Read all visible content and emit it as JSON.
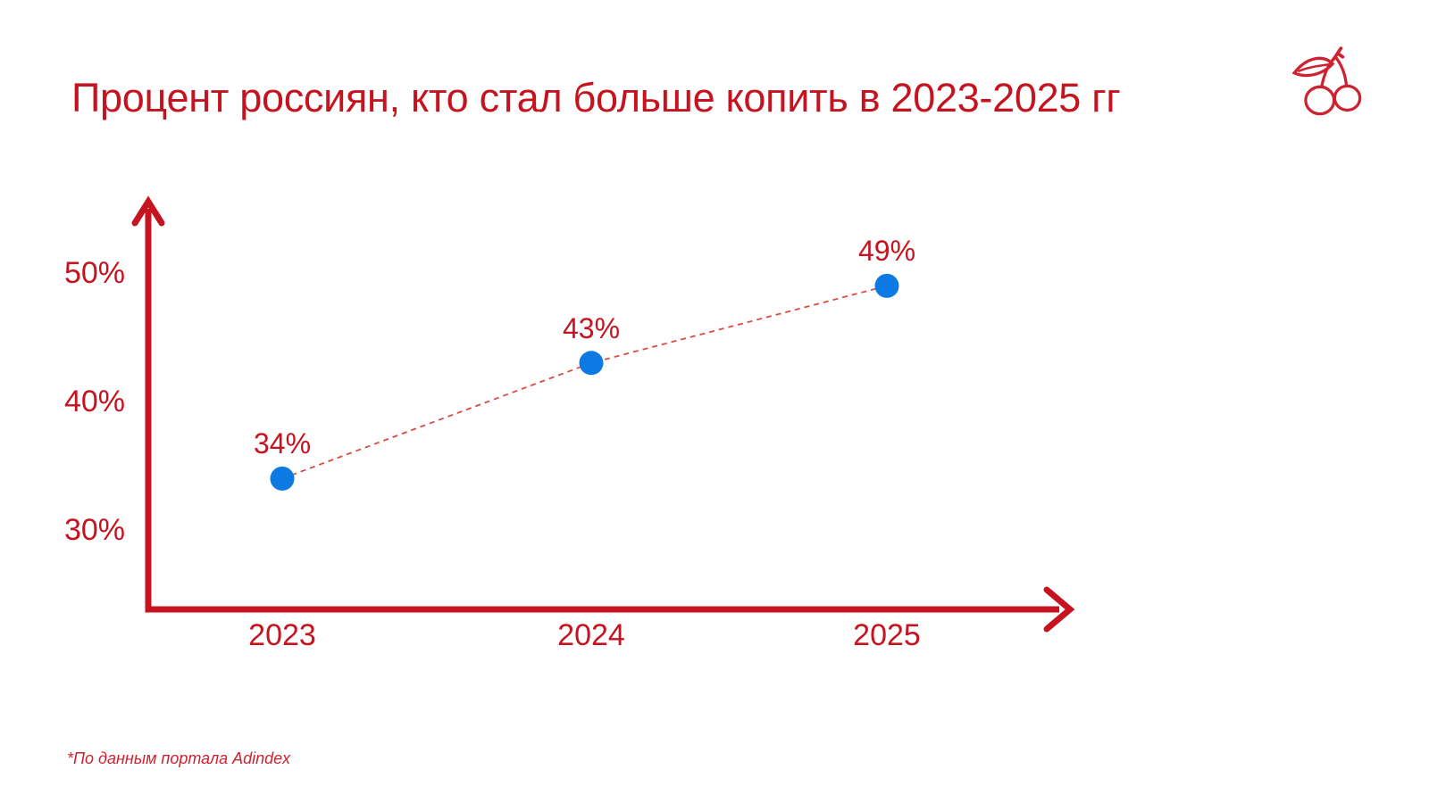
{
  "page": {
    "title": "Процент россиян, кто стал больше копить в 2023-2025 гг",
    "footnote": "*По данным портала Adindex",
    "logo_icon": "cherries-icon"
  },
  "colors": {
    "accent_red": "#c51420",
    "dash_red": "#d94b43",
    "point_blue": "#0d7ae4",
    "background": "#ffffff"
  },
  "chart_data": {
    "type": "scatter",
    "title": "Процент россиян, кто стал больше копить в 2023-2025 гг",
    "categories": [
      "2023",
      "2024",
      "2025"
    ],
    "values": [
      34,
      43,
      49
    ],
    "point_labels": [
      "34%",
      "43%",
      "49%"
    ],
    "y_ticks": [
      30,
      40,
      50
    ],
    "y_tick_labels": [
      "30%",
      "40%",
      "50%"
    ],
    "ylim": [
      24,
      55
    ],
    "xlabel": "",
    "ylabel": "",
    "line_style": "dashed",
    "marker": "circle",
    "grid": false,
    "legend": "none",
    "source_note": "*По данным портала Adindex"
  }
}
